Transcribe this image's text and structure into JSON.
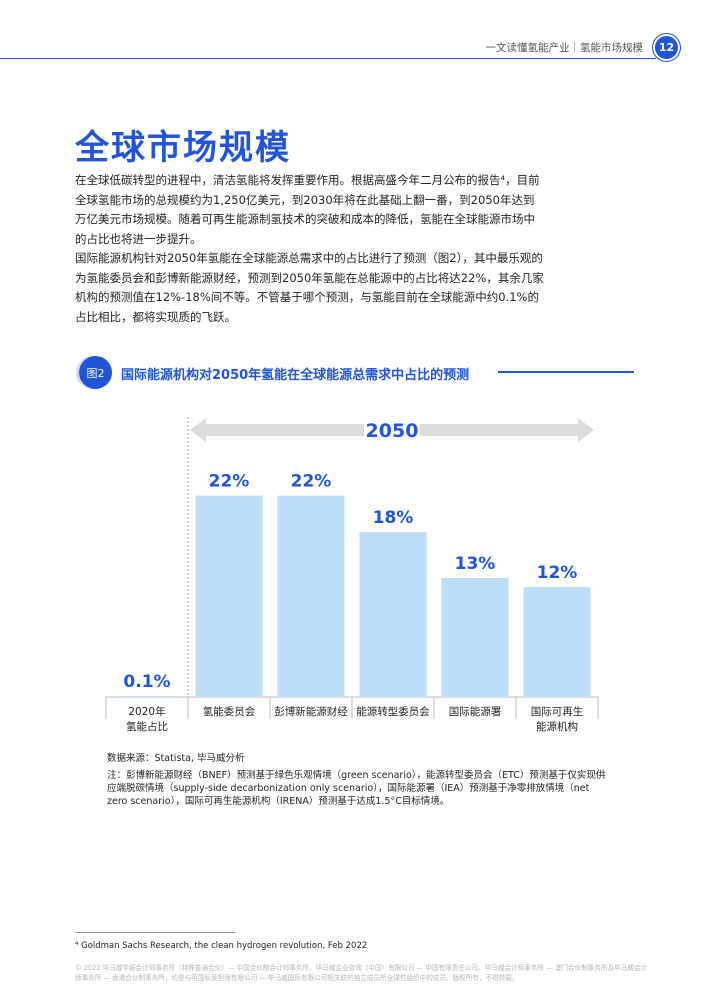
{
  "header": {
    "text": "一文读懂氢能产业｜氢能市场规模",
    "page_number": "12"
  },
  "title": "全球市场规模",
  "paragraphs": [
    "在全球低碳转型的进程中，清洁氢能将发挥重要作用。根据高盛今年二月公布的报告⁴，目前全球氢能市场的总规模约为1,250亿美元，到2030年将在此基础上翻一番，到2050年达到万亿美元市场规模。随着可再生能源制氢技术的突破和成本的降低，氢能在全球能源市场中的占比也将进一步提升。",
    "国际能源机构针对2050年氢能在全球能源总需求中的占比进行了预测（图2），其中最乐观的为氢能委员会和彭博新能源财经，预测到2050年氢能在总能源中的占比将达22%，其余几家机构的预测值在12%-18%间不等。不管基于哪个预测，与氢能目前在全球能源中约0.1%的占比相比，都将实现质的飞跃。"
  ],
  "figure": {
    "badge": "图2",
    "title": "国际能源机构对2050年氢能在全球能源总需求中占比的预测"
  },
  "chart_data": {
    "type": "bar",
    "categories": [
      "2020年氢能占比",
      "氢能委员会",
      "彭博新能源财经",
      "能源转型委员会",
      "国际能源署",
      "国际可再生能源机构"
    ],
    "values": [
      0.1,
      22,
      22,
      18,
      13,
      12
    ],
    "value_labels": [
      "0.1%",
      "22%",
      "22%",
      "18%",
      "13%",
      "12%"
    ],
    "span_label": "2050",
    "ylim": [
      0,
      26
    ],
    "bar_color": "#bcdcf8",
    "label_color": "#1f55d6"
  },
  "source": "数据来源：Statista, 毕马威分析",
  "note": "注：彭博新能源财经（BNEF）预测基于绿色乐观情境（green scenario），能源转型委员会（ETC）预测基于仅实现供应端脱碳情境（supply-side decarbonization only scenario），国际能源署（IEA）预测基于净零排放情境（net zero scenario），国际可再生能源机构（IRENA）预测基于达成1.5°C目标情境。",
  "footnote": "⁴ Goldman Sachs Research, the clean hydrogen revolution, Feb 2022",
  "copyright": "© 2022 毕马威华振会计师事务所（特殊普通合伙）— 中国合伙制会计师事务所，毕马威企业咨询（中国）有限公司 — 中国有限责任公司，毕马威会计师事务所 — 澳门合伙制事务所及毕马威会计师事务所 — 香港合伙制事务所，均是与英国私营担保有限公司 — 毕马威国际有限公司相关联的独立成员所全球性组织中的成员。版权所有，不得转载。"
}
